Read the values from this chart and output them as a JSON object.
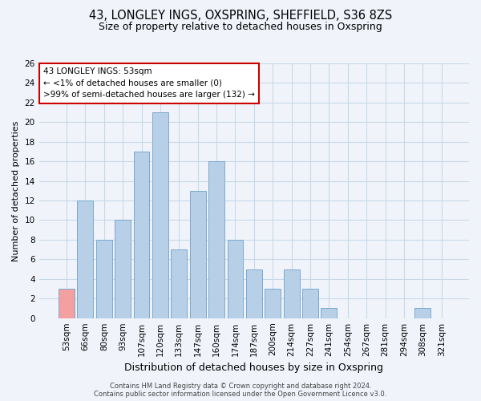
{
  "title": "43, LONGLEY INGS, OXSPRING, SHEFFIELD, S36 8ZS",
  "subtitle": "Size of property relative to detached houses in Oxspring",
  "xlabel": "Distribution of detached houses by size in Oxspring",
  "ylabel": "Number of detached properties",
  "categories": [
    "53sqm",
    "66sqm",
    "80sqm",
    "93sqm",
    "107sqm",
    "120sqm",
    "133sqm",
    "147sqm",
    "160sqm",
    "174sqm",
    "187sqm",
    "200sqm",
    "214sqm",
    "227sqm",
    "241sqm",
    "254sqm",
    "267sqm",
    "281sqm",
    "294sqm",
    "308sqm",
    "321sqm"
  ],
  "values": [
    3,
    12,
    8,
    10,
    17,
    21,
    7,
    13,
    16,
    8,
    5,
    3,
    5,
    3,
    1,
    0,
    0,
    0,
    0,
    1,
    0
  ],
  "highlight_index": 0,
  "highlight_color": "#f4a0a0",
  "bar_color": "#b8cfe8",
  "bar_edge_color": "#7aaad0",
  "ylim": [
    0,
    26
  ],
  "yticks": [
    0,
    2,
    4,
    6,
    8,
    10,
    12,
    14,
    16,
    18,
    20,
    22,
    24,
    26
  ],
  "annotation_title": "43 LONGLEY INGS: 53sqm",
  "annotation_line1": "← <1% of detached houses are smaller (0)",
  "annotation_line2": ">99% of semi-detached houses are larger (132) →",
  "footer1": "Contains HM Land Registry data © Crown copyright and database right 2024.",
  "footer2": "Contains public sector information licensed under the Open Government Licence v3.0.",
  "bg_color": "#f0f4fa",
  "grid_color": "#c8d8e8",
  "annotation_box_color": "#ffffff",
  "annotation_box_edge": "#cc0000",
  "title_fontsize": 10.5,
  "subtitle_fontsize": 9,
  "ylabel_fontsize": 8,
  "xlabel_fontsize": 9,
  "tick_fontsize": 7.5,
  "footer_fontsize": 6
}
